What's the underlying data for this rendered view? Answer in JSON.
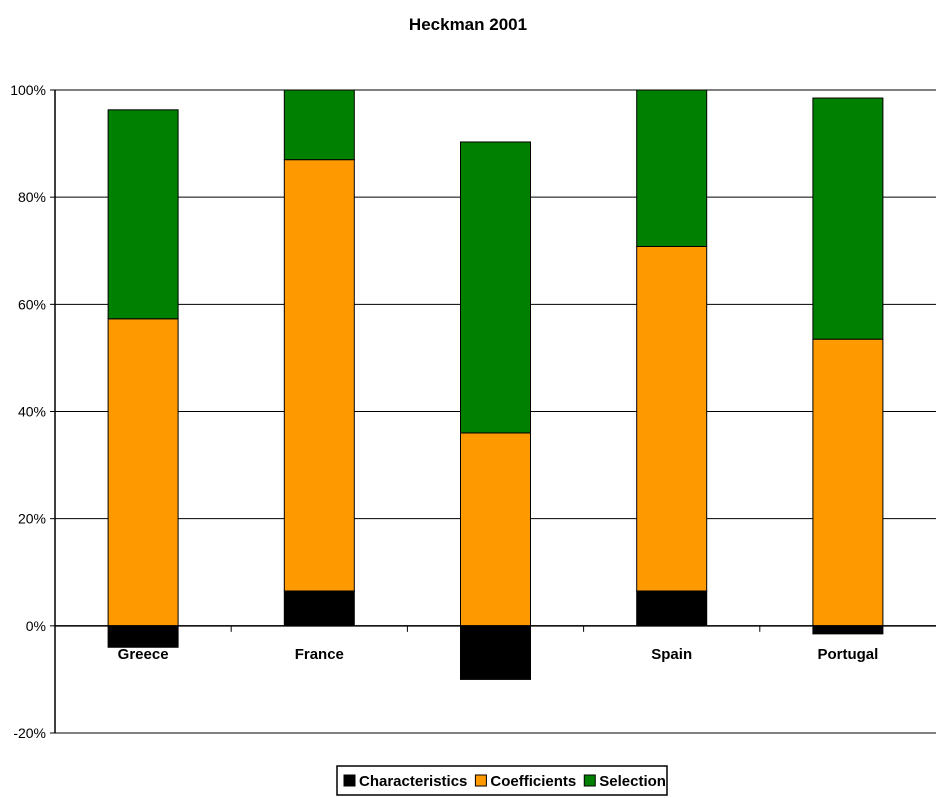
{
  "chart_data": {
    "type": "bar",
    "stacked": true,
    "title": "Heckman 2001",
    "xlabel": "",
    "ylabel": "",
    "categories": [
      "Greece",
      "France",
      "",
      "Spain",
      "Portugal"
    ],
    "series": [
      {
        "name": "Characteristics",
        "color": "#000000",
        "values": [
          -4,
          6.5,
          -10,
          6.5,
          -1.5
        ]
      },
      {
        "name": "Coefficients",
        "color": "#ff9900",
        "values": [
          57.3,
          80.5,
          36,
          64.3,
          53.5
        ]
      },
      {
        "name": "Selection",
        "color": "#008000",
        "values": [
          39,
          13,
          54.3,
          29.2,
          45
        ]
      }
    ],
    "ylim": [
      -20,
      100
    ],
    "yticks": [
      -20,
      0,
      20,
      40,
      60,
      80,
      100
    ],
    "ytick_labels": [
      "-20%",
      "0%",
      "20%",
      "40%",
      "60%",
      "80%",
      "100%"
    ],
    "grid": true,
    "legend_position": "bottom"
  }
}
